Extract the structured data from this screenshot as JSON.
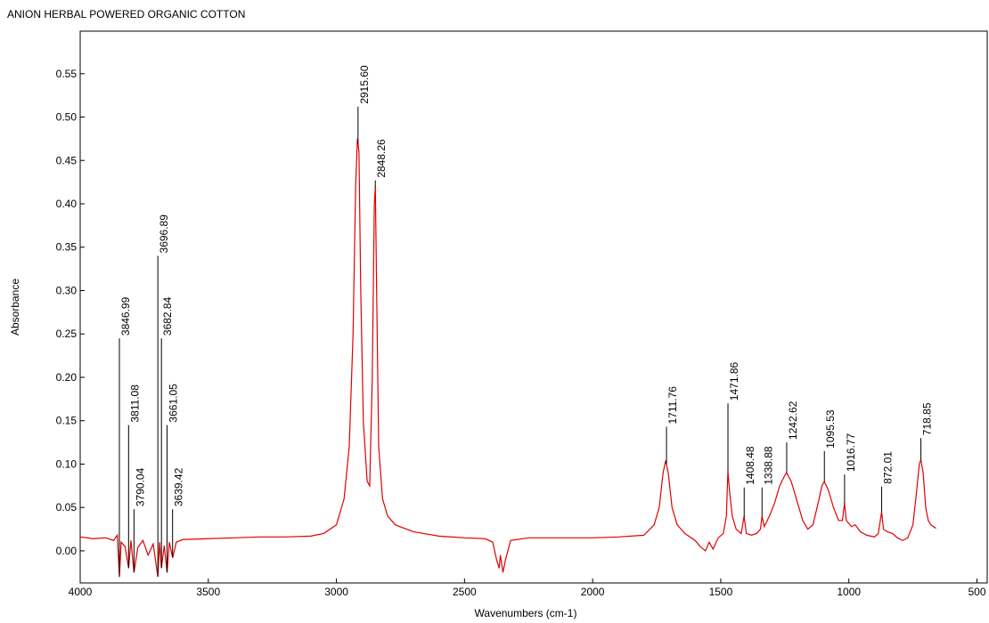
{
  "chart_data": {
    "type": "line",
    "title": "ANION HERBAL POWERED ORGANIC COTTON",
    "x_label": "Wavenumbers (cm-1)",
    "y_label": "Absorbance",
    "xlim": [
      4000,
      460
    ],
    "ylim": [
      -0.037,
      0.599
    ],
    "xticks": [
      4000,
      3500,
      3000,
      2500,
      2000,
      1500,
      1000,
      500
    ],
    "yticks": [
      {
        "value": 0,
        "label": "0.00"
      },
      {
        "value": 0.05,
        "label": "0.05"
      },
      {
        "value": 0.1,
        "label": "0.10"
      },
      {
        "value": 0.15,
        "label": "0.15"
      },
      {
        "value": 0.2,
        "label": "0.20"
      },
      {
        "value": 0.25,
        "label": "0.25"
      },
      {
        "value": 0.3,
        "label": "0.30"
      },
      {
        "value": 0.35,
        "label": "0.35"
      },
      {
        "value": 0.4,
        "label": "0.40"
      },
      {
        "value": 0.45,
        "label": "0.45"
      },
      {
        "value": 0.5,
        "label": "0.50"
      },
      {
        "value": 0.55,
        "label": "0.55"
      }
    ],
    "x": [
      4000,
      3950,
      3900,
      3870,
      3855,
      3847,
      3840,
      3825,
      3811,
      3802,
      3790,
      3775,
      3755,
      3735,
      3715,
      3697,
      3690,
      3683,
      3672,
      3661,
      3652,
      3639,
      3625,
      3600,
      3500,
      3400,
      3300,
      3200,
      3100,
      3050,
      3000,
      2970,
      2950,
      2935,
      2925,
      2918,
      2912,
      2905,
      2895,
      2880,
      2870,
      2860,
      2852,
      2848,
      2843,
      2835,
      2820,
      2800,
      2770,
      2700,
      2600,
      2500,
      2420,
      2390,
      2375,
      2365,
      2360,
      2350,
      2340,
      2320,
      2250,
      2100,
      2000,
      1900,
      1800,
      1760,
      1740,
      1725,
      1715,
      1705,
      1690,
      1670,
      1640,
      1600,
      1580,
      1560,
      1545,
      1530,
      1510,
      1490,
      1478,
      1472,
      1466,
      1455,
      1440,
      1420,
      1409,
      1400,
      1380,
      1360,
      1345,
      1339,
      1330,
      1310,
      1290,
      1270,
      1250,
      1243,
      1225,
      1200,
      1180,
      1160,
      1140,
      1120,
      1105,
      1096,
      1080,
      1060,
      1040,
      1025,
      1017,
      1010,
      990,
      975,
      955,
      930,
      900,
      885,
      872,
      865,
      850,
      830,
      810,
      790,
      770,
      750,
      735,
      725,
      719,
      710,
      700,
      690,
      680,
      670,
      660
    ],
    "series": [
      {
        "color": "#e00000",
        "values": [
          0.016,
          0.014,
          0.015,
          0.012,
          0.018,
          -0.03,
          0.01,
          0.005,
          -0.02,
          0.012,
          -0.025,
          0.004,
          0.012,
          -0.005,
          0.008,
          -0.03,
          0.01,
          -0.02,
          0.006,
          -0.025,
          0.01,
          -0.008,
          0.01,
          0.013,
          0.014,
          0.015,
          0.016,
          0.016,
          0.017,
          0.02,
          0.03,
          0.06,
          0.12,
          0.25,
          0.42,
          0.475,
          0.46,
          0.3,
          0.15,
          0.08,
          0.075,
          0.2,
          0.4,
          0.42,
          0.3,
          0.12,
          0.06,
          0.04,
          0.03,
          0.022,
          0.017,
          0.015,
          0.014,
          0.01,
          -0.01,
          -0.02,
          -0.005,
          -0.025,
          -0.01,
          0.012,
          0.015,
          0.015,
          0.015,
          0.016,
          0.018,
          0.03,
          0.05,
          0.09,
          0.104,
          0.09,
          0.05,
          0.03,
          0.02,
          0.012,
          0.005,
          0.0,
          0.01,
          0.002,
          0.015,
          0.02,
          0.04,
          0.092,
          0.07,
          0.04,
          0.025,
          0.02,
          0.04,
          0.02,
          0.018,
          0.02,
          0.025,
          0.04,
          0.028,
          0.04,
          0.055,
          0.075,
          0.087,
          0.09,
          0.08,
          0.055,
          0.035,
          0.025,
          0.03,
          0.055,
          0.075,
          0.08,
          0.07,
          0.05,
          0.035,
          0.035,
          0.055,
          0.035,
          0.028,
          0.03,
          0.022,
          0.018,
          0.016,
          0.02,
          0.045,
          0.025,
          0.022,
          0.02,
          0.015,
          0.012,
          0.015,
          0.03,
          0.07,
          0.1,
          0.105,
          0.09,
          0.05,
          0.035,
          0.03,
          0.028,
          0.026
        ]
      }
    ],
    "peaks": [
      {
        "x": 3846.99,
        "label": "3846.99",
        "y": 0.245
      },
      {
        "x": 3811.08,
        "label": "3811.08",
        "y": 0.145
      },
      {
        "x": 3790.04,
        "label": "3790.04",
        "y": 0.048
      },
      {
        "x": 3696.89,
        "label": "3696.89",
        "y": 0.34
      },
      {
        "x": 3682.84,
        "label": "3682.84",
        "y": 0.245
      },
      {
        "x": 3661.05,
        "label": "3661.05",
        "y": 0.145
      },
      {
        "x": 3639.42,
        "label": "3639.42",
        "y": 0.048
      },
      {
        "x": 2915.6,
        "label": "2915.60",
        "y": 0.512
      },
      {
        "x": 2848.26,
        "label": "2848.26",
        "y": 0.427
      },
      {
        "x": 1711.76,
        "label": "1711.76",
        "y": 0.143
      },
      {
        "x": 1471.86,
        "label": "1471.86",
        "y": 0.17
      },
      {
        "x": 1408.48,
        "label": "1408.48",
        "y": 0.073
      },
      {
        "x": 1338.88,
        "label": "1338.88",
        "y": 0.073
      },
      {
        "x": 1242.62,
        "label": "1242.62",
        "y": 0.125
      },
      {
        "x": 1095.53,
        "label": "1095.53",
        "y": 0.115
      },
      {
        "x": 1016.77,
        "label": "1016.77",
        "y": 0.088
      },
      {
        "x": 872.01,
        "label": "872.01",
        "y": 0.074
      },
      {
        "x": 718.85,
        "label": "718.85",
        "y": 0.13
      }
    ]
  }
}
